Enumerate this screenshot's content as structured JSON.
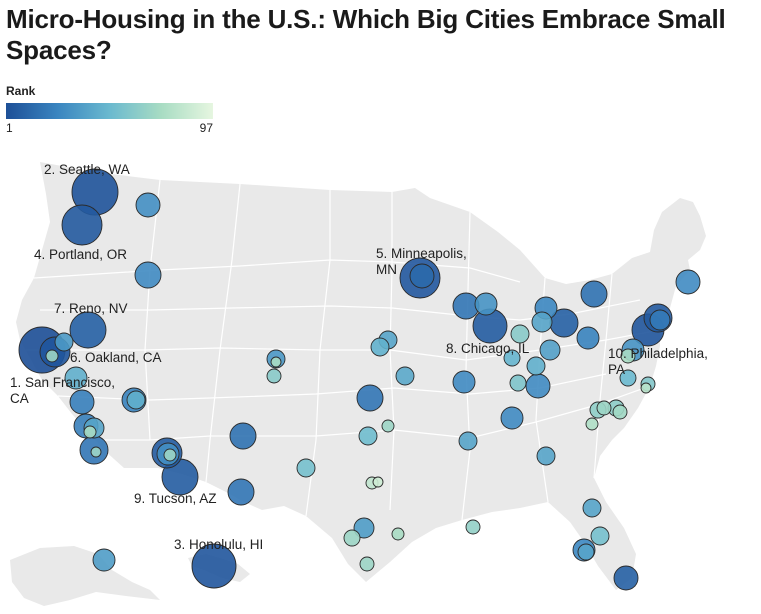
{
  "title": "Micro-Housing in the U.S.: Which Big Cities Embrace Small Spaces?",
  "legend": {
    "title": "Rank",
    "min_label": "1",
    "max_label": "97",
    "colors": [
      "#1d4f97",
      "#3a85c0",
      "#6ab9cf",
      "#a8dcc3",
      "#e6f6e0"
    ]
  },
  "map_colors": {
    "land": "#e9e9e9",
    "state_border": "#ffffff",
    "bubble_stroke": "#2b2b2b"
  },
  "labels": {
    "sf": [
      "1. San Francisco,",
      "CA"
    ],
    "seattle": [
      "2. Seattle, WA"
    ],
    "honolulu": [
      "3. Honolulu, HI"
    ],
    "portland": [
      "4. Portland, OR"
    ],
    "minneapolis": [
      "5. Minneapolis,",
      "MN"
    ],
    "oakland": [
      "6. Oakland, CA"
    ],
    "reno": [
      "7. Reno, NV"
    ],
    "chicago": [
      "8. Chicago, IL"
    ],
    "tucson": [
      "9. Tucson, AZ"
    ],
    "philadelphia": [
      "10. Philadelphia,",
      "PA"
    ]
  },
  "chart_data": {
    "type": "bubble-map",
    "title": "Micro-Housing in the U.S.: Which Big Cities Embrace Small Spaces?",
    "color_scale": {
      "label": "Rank",
      "min": 1,
      "max": 97
    },
    "labeled_cities": [
      {
        "name": "San Francisco, CA",
        "rank": 1
      },
      {
        "name": "Seattle, WA",
        "rank": 2
      },
      {
        "name": "Honolulu, HI",
        "rank": 3
      },
      {
        "name": "Portland, OR",
        "rank": 4
      },
      {
        "name": "Minneapolis, MN",
        "rank": 5
      },
      {
        "name": "Oakland, CA",
        "rank": 6
      },
      {
        "name": "Reno, NV",
        "rank": 7
      },
      {
        "name": "Chicago, IL",
        "rank": 8
      },
      {
        "name": "Tucson, AZ",
        "rank": 9
      },
      {
        "name": "Philadelphia, PA",
        "rank": 10
      }
    ]
  }
}
